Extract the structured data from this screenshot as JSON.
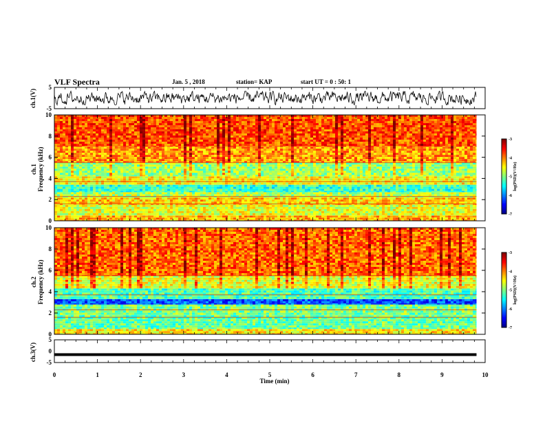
{
  "header": {
    "title": "VLF Spectra",
    "date": "Jan. 5 , 2018",
    "station": "station= KAP",
    "start": "start UT = 0 : 50: 1"
  },
  "chart_data": [
    {
      "type": "line",
      "name": "ch1-waveform",
      "ylabel": "ch.1(V)",
      "ylim": [
        -5,
        5
      ],
      "yticks": [
        "5",
        "-5"
      ],
      "xlim": [
        0,
        10
      ],
      "note_values": "dense noise waveform oscillating roughly between -3 and +3 V across the full 0-9.8 min window"
    },
    {
      "type": "heatmap",
      "name": "ch1-spectrogram",
      "ylabel": "Frequency (kHz)",
      "side_label": "ch.1",
      "ylim": [
        0,
        10
      ],
      "yticks": [
        "0",
        "2",
        "4",
        "6",
        "8",
        "10"
      ],
      "xlim": [
        0,
        10
      ],
      "data_extent_min": 9.8,
      "bands_khz": [
        {
          "from": 0.0,
          "to": 0.5,
          "level": -4.2
        },
        {
          "from": 0.5,
          "to": 1.5,
          "level": -4.6
        },
        {
          "from": 1.5,
          "to": 2.2,
          "level": -4.3
        },
        {
          "from": 2.2,
          "to": 2.7,
          "level": -4.8
        },
        {
          "from": 2.7,
          "to": 3.4,
          "level": -5.3
        },
        {
          "from": 3.4,
          "to": 4.2,
          "level": -4.5
        },
        {
          "from": 4.2,
          "to": 5.5,
          "level": -4.9
        },
        {
          "from": 5.5,
          "to": 7.0,
          "level": -4.1
        },
        {
          "from": 7.0,
          "to": 10.0,
          "level": -3.8
        }
      ],
      "colorbar": {
        "label": "log(PSD)(V²/Hz)",
        "min": -7,
        "max": -3,
        "ticks": [
          "-3",
          "-4",
          "-5",
          "-6",
          "-7"
        ]
      }
    },
    {
      "type": "heatmap",
      "name": "ch2-spectrogram",
      "ylabel": "Frequency (kHz)",
      "side_label": "ch.2",
      "ylim": [
        0,
        10
      ],
      "yticks": [
        "0",
        "2",
        "4",
        "6",
        "8",
        "10"
      ],
      "xlim": [
        0,
        10
      ],
      "data_extent_min": 9.8,
      "bands_khz": [
        {
          "from": 0.0,
          "to": 0.5,
          "level": -4.4
        },
        {
          "from": 0.5,
          "to": 1.8,
          "level": -5.1
        },
        {
          "from": 1.8,
          "to": 2.8,
          "level": -5.0
        },
        {
          "from": 2.8,
          "to": 3.3,
          "level": -6.2
        },
        {
          "from": 3.3,
          "to": 4.3,
          "level": -5.2
        },
        {
          "from": 4.3,
          "to": 5.5,
          "level": -4.6
        },
        {
          "from": 5.5,
          "to": 10.0,
          "level": -3.9
        }
      ],
      "colorbar": {
        "label": "log(PSD)(V²/Hz)",
        "min": -7,
        "max": -3,
        "ticks": [
          "-3",
          "-4",
          "-5",
          "-6",
          "-7"
        ]
      }
    },
    {
      "type": "line",
      "name": "ch3-waveform",
      "ylabel": "ch.3(V)",
      "ylim": [
        -5,
        5
      ],
      "yticks": [
        "5",
        "0",
        "-5"
      ],
      "xlim": [
        0,
        10
      ],
      "constant_value": -1.5
    }
  ],
  "xaxis": {
    "label": "Time (min)",
    "ticks": [
      "0",
      "1",
      "2",
      "3",
      "4",
      "5",
      "6",
      "7",
      "8",
      "9",
      "10"
    ]
  },
  "colors": {
    "jet": [
      "#000080",
      "#0000ff",
      "#0080ff",
      "#00ffff",
      "#80ff80",
      "#ffff00",
      "#ff8000",
      "#ff0000",
      "#800000"
    ]
  }
}
